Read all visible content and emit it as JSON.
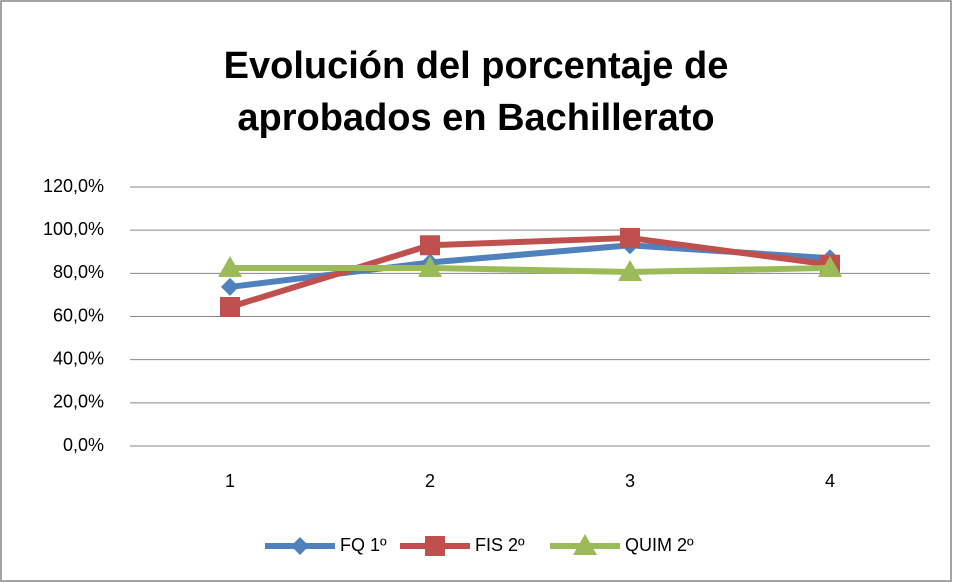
{
  "chart_data": {
    "type": "line",
    "title": "Evolución del porcentaje de aprobados en Bachillerato",
    "categories": [
      "1",
      "2",
      "3",
      "4"
    ],
    "series": [
      {
        "name": "FQ 1º",
        "color": "#4f81bd",
        "marker": "diamond",
        "values": [
          73.7,
          85,
          93,
          87
        ]
      },
      {
        "name": "FIS 2º",
        "color": "#c0504d",
        "marker": "square",
        "values": [
          64.4,
          93,
          96.4,
          84
        ]
      },
      {
        "name": "QUIM 2º",
        "color": "#9bbb59",
        "marker": "triangle",
        "values": [
          82.5,
          82.5,
          80.6,
          82.5
        ]
      }
    ],
    "ylim": [
      0,
      120
    ],
    "yticks": [
      {
        "value": 0,
        "label": "0,0%"
      },
      {
        "value": 20,
        "label": "20,0%"
      },
      {
        "value": 40,
        "label": "40,0%"
      },
      {
        "value": 60,
        "label": "60,0%"
      },
      {
        "value": 80,
        "label": "80,0%"
      },
      {
        "value": 100,
        "label": "100,0%"
      },
      {
        "value": 120,
        "label": "120,0%"
      }
    ],
    "grid": true,
    "legend": "bottom"
  }
}
